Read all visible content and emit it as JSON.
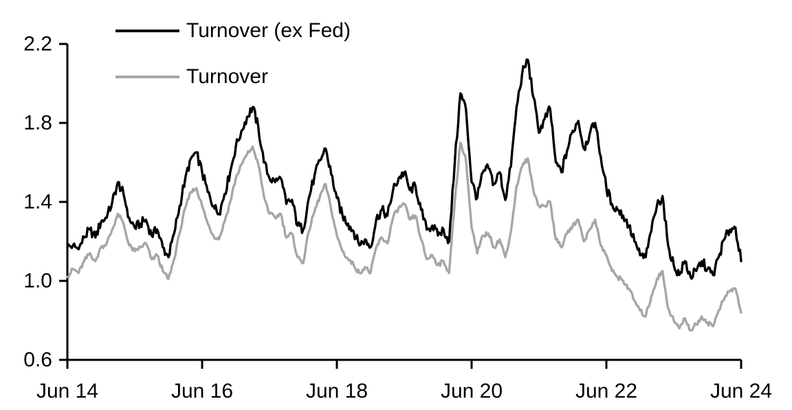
{
  "figure": {
    "background": "#ffffff",
    "axis_color": "#000000"
  },
  "chart_data": {
    "type": "line",
    "title": "",
    "xlabel": "",
    "ylabel": "",
    "grid": false,
    "legend_position": "top-left-inside",
    "x_axis": {
      "start": "Jun 2014",
      "end": "Jun 2024",
      "tick_labels": [
        "Jun 14",
        "Jun 16",
        "Jun 18",
        "Jun 20",
        "Jun 22",
        "Jun 24"
      ],
      "tick_months": [
        0,
        24,
        48,
        72,
        96,
        120
      ]
    },
    "y_axis": {
      "range": [
        0.6,
        2.2
      ],
      "ticks": [
        2.2,
        1.8,
        1.4,
        1.0,
        0.6
      ]
    },
    "x_unit": "months since Jun 2014, monthly estimates",
    "series": [
      {
        "name": "Turnover (ex Fed)",
        "color": "#000000",
        "values": [
          1.17,
          1.18,
          1.16,
          1.22,
          1.26,
          1.22,
          1.3,
          1.32,
          1.4,
          1.5,
          1.44,
          1.32,
          1.27,
          1.29,
          1.31,
          1.23,
          1.26,
          1.17,
          1.12,
          1.24,
          1.38,
          1.52,
          1.62,
          1.65,
          1.55,
          1.45,
          1.38,
          1.34,
          1.44,
          1.55,
          1.68,
          1.76,
          1.83,
          1.88,
          1.78,
          1.6,
          1.52,
          1.5,
          1.52,
          1.39,
          1.41,
          1.28,
          1.26,
          1.42,
          1.53,
          1.61,
          1.67,
          1.54,
          1.42,
          1.33,
          1.29,
          1.25,
          1.18,
          1.21,
          1.17,
          1.31,
          1.36,
          1.33,
          1.46,
          1.52,
          1.55,
          1.46,
          1.48,
          1.36,
          1.26,
          1.28,
          1.23,
          1.26,
          1.2,
          1.6,
          1.95,
          1.87,
          1.5,
          1.42,
          1.55,
          1.57,
          1.49,
          1.55,
          1.41,
          1.58,
          1.88,
          2.05,
          2.12,
          1.93,
          1.75,
          1.82,
          1.87,
          1.6,
          1.55,
          1.66,
          1.76,
          1.81,
          1.67,
          1.74,
          1.8,
          1.63,
          1.47,
          1.39,
          1.36,
          1.33,
          1.28,
          1.2,
          1.13,
          1.12,
          1.25,
          1.38,
          1.43,
          1.18,
          1.08,
          1.03,
          1.1,
          1.02,
          1.05,
          1.1,
          1.06,
          1.03,
          1.12,
          1.21,
          1.26,
          1.27,
          1.1
        ]
      },
      {
        "name": "Turnover",
        "color": "#a6a6a6",
        "values": [
          1.02,
          1.06,
          1.04,
          1.1,
          1.14,
          1.1,
          1.17,
          1.19,
          1.26,
          1.34,
          1.29,
          1.18,
          1.15,
          1.17,
          1.19,
          1.11,
          1.13,
          1.05,
          1.01,
          1.11,
          1.24,
          1.37,
          1.45,
          1.47,
          1.38,
          1.29,
          1.23,
          1.21,
          1.3,
          1.4,
          1.52,
          1.59,
          1.64,
          1.68,
          1.59,
          1.43,
          1.34,
          1.32,
          1.34,
          1.22,
          1.24,
          1.12,
          1.09,
          1.25,
          1.35,
          1.43,
          1.49,
          1.36,
          1.23,
          1.15,
          1.11,
          1.08,
          1.04,
          1.07,
          1.04,
          1.17,
          1.22,
          1.19,
          1.32,
          1.37,
          1.39,
          1.31,
          1.33,
          1.21,
          1.11,
          1.13,
          1.08,
          1.1,
          1.04,
          1.4,
          1.7,
          1.61,
          1.27,
          1.14,
          1.23,
          1.24,
          1.17,
          1.21,
          1.12,
          1.25,
          1.48,
          1.58,
          1.62,
          1.46,
          1.38,
          1.38,
          1.4,
          1.21,
          1.17,
          1.24,
          1.28,
          1.31,
          1.2,
          1.26,
          1.31,
          1.18,
          1.13,
          1.05,
          1.02,
          1.0,
          0.96,
          0.9,
          0.85,
          0.82,
          0.92,
          1.01,
          1.05,
          0.86,
          0.8,
          0.76,
          0.81,
          0.75,
          0.78,
          0.82,
          0.79,
          0.77,
          0.85,
          0.91,
          0.95,
          0.96,
          0.84
        ]
      }
    ],
    "style": {
      "line_width": 3.4,
      "axis_width": 3,
      "tick_length": 12,
      "jitter": [
        0.025,
        0.012
      ]
    }
  }
}
